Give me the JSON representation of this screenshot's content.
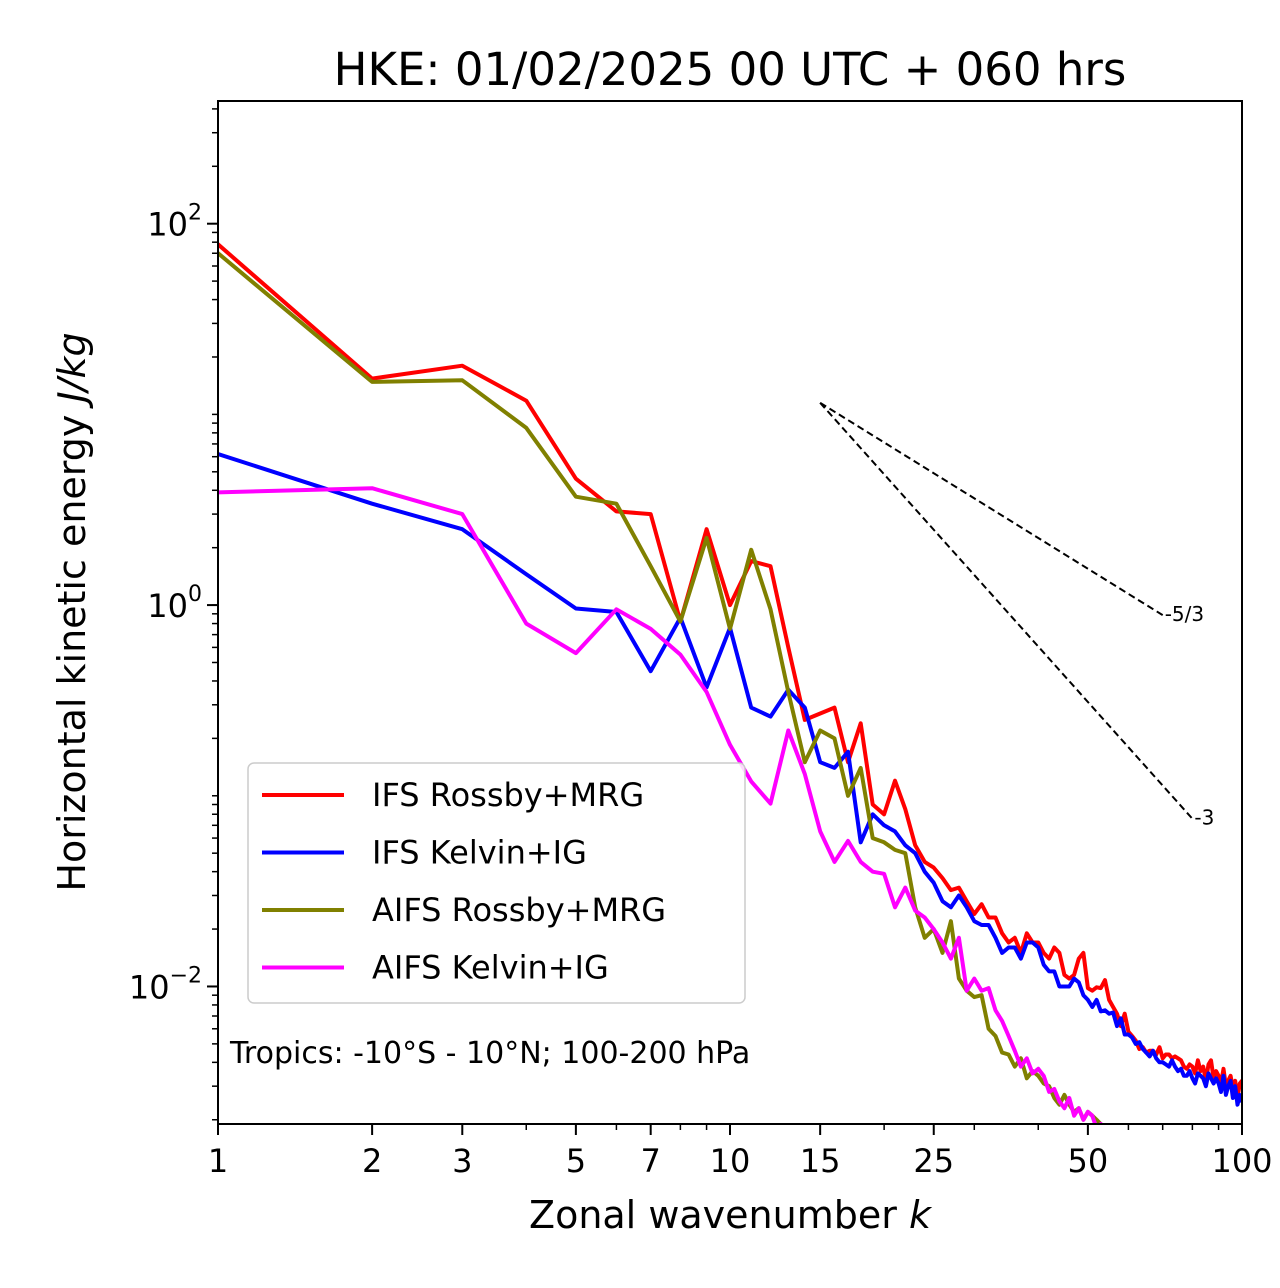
{
  "chart_data": {
    "type": "line",
    "title": "HKE: 01/02/2025 00 UTC + 060 hrs",
    "xlabel": "Zonal wavenumber",
    "xlabel_var": "k",
    "ylabel": "Horizontal kinetic energy",
    "ylabel_unit": "J/kg",
    "xscale": "log",
    "yscale": "log",
    "xlim": [
      1,
      100
    ],
    "ylim": [
      0.0019,
      440
    ],
    "xticks": [
      {
        "value": 1,
        "label": "1"
      },
      {
        "value": 2,
        "label": "2"
      },
      {
        "value": 3,
        "label": "3"
      },
      {
        "value": 5,
        "label": "5"
      },
      {
        "value": 7,
        "label": "7"
      },
      {
        "value": 10,
        "label": "10"
      },
      {
        "value": 15,
        "label": "15"
      },
      {
        "value": 25,
        "label": "25"
      },
      {
        "value": 50,
        "label": "50"
      },
      {
        "value": 100,
        "label": "100"
      }
    ],
    "yticks": [
      {
        "value": 0.01,
        "base": "10",
        "exp": "−2"
      },
      {
        "value": 1,
        "base": "10",
        "exp": "0"
      },
      {
        "value": 100,
        "base": "10",
        "exp": "2"
      }
    ],
    "annotation": "Tropics: -10°S - 10°N; 100-200 hPa",
    "legend_position": "lower-left",
    "grid": false,
    "reference_lines": [
      {
        "label": "-5/3",
        "slope": -1.6667,
        "x": [
          15,
          70
        ],
        "y": [
          11.5,
          0.886
        ]
      },
      {
        "label": "-3",
        "slope": -3,
        "x": [
          15,
          80
        ],
        "y": [
          11.5,
          0.0758
        ]
      }
    ],
    "series": [
      {
        "name": "IFS Rossby+MRG",
        "color": "#ff0000",
        "x": [
          1,
          2,
          3,
          4,
          5,
          6,
          7,
          8,
          9,
          10,
          11,
          12,
          13,
          14,
          15,
          16,
          17,
          18,
          19,
          20,
          21,
          22,
          23,
          24,
          25,
          26,
          27,
          28,
          29,
          30,
          31,
          32,
          33,
          34,
          35,
          36,
          37,
          38,
          39,
          40,
          41,
          42,
          43,
          44,
          45,
          46,
          47,
          48,
          49,
          50,
          51,
          52,
          53,
          54,
          55,
          56,
          57,
          58,
          59,
          60,
          61,
          62,
          63,
          64,
          65,
          66,
          67,
          68,
          69,
          70,
          71,
          72,
          73,
          74,
          75,
          76,
          77,
          78,
          79,
          80,
          81,
          82,
          83,
          84,
          85,
          86,
          87,
          88,
          89,
          90,
          91,
          92,
          93,
          94,
          95,
          96,
          97,
          98,
          99,
          100
        ],
        "y": [
          78,
          15.4,
          18,
          11.8,
          4.6,
          3.1,
          3.0,
          0.82,
          2.5,
          1.0,
          1.7,
          1.6,
          0.6,
          0.25,
          0.27,
          0.29,
          0.15,
          0.24,
          0.09,
          0.08,
          0.12,
          0.085,
          0.055,
          0.045,
          0.042,
          0.037,
          0.032,
          0.033,
          0.028,
          0.024,
          0.027,
          0.023,
          0.023,
          0.019,
          0.017,
          0.018,
          0.015,
          0.019,
          0.017,
          0.017,
          0.015,
          0.014,
          0.016,
          0.015,
          0.0115,
          0.011,
          0.0115,
          0.014,
          0.015,
          0.0098,
          0.0095,
          0.0099,
          0.0098,
          0.0108,
          0.0085,
          0.0078,
          0.0072,
          0.0062,
          0.0072,
          0.0058,
          0.0055,
          0.0052,
          0.0047,
          0.0048,
          0.0045,
          0.0046,
          0.0046,
          0.0044,
          0.0048,
          0.0042,
          0.0044,
          0.0044,
          0.0042,
          0.0043,
          0.0042,
          0.0041,
          0.0038,
          0.0037,
          0.0039,
          0.0038,
          0.0035,
          0.0041,
          0.0036,
          0.0038,
          0.0032,
          0.0039,
          0.0041,
          0.0033,
          0.0036,
          0.0034,
          0.0031,
          0.0037,
          0.003,
          0.0032,
          0.0034,
          0.0029,
          0.0032,
          0.0026,
          0.0031,
          0.0032
        ]
      },
      {
        "name": "IFS Kelvin+IG",
        "color": "#0000ff",
        "x": [
          1,
          2,
          3,
          4,
          5,
          6,
          7,
          8,
          9,
          10,
          11,
          12,
          13,
          14,
          15,
          16,
          17,
          18,
          19,
          20,
          21,
          22,
          23,
          24,
          25,
          26,
          27,
          28,
          29,
          30,
          31,
          32,
          33,
          34,
          35,
          36,
          37,
          38,
          39,
          40,
          41,
          42,
          43,
          44,
          45,
          46,
          47,
          48,
          49,
          50,
          51,
          52,
          53,
          54,
          55,
          56,
          57,
          58,
          59,
          60,
          61,
          62,
          63,
          64,
          65,
          66,
          67,
          68,
          69,
          70,
          71,
          72,
          73,
          74,
          75,
          76,
          77,
          78,
          79,
          80,
          81,
          82,
          83,
          84,
          85,
          86,
          87,
          88,
          89,
          90,
          91,
          92,
          93,
          94,
          95,
          96,
          97,
          98,
          99,
          100
        ],
        "y": [
          6.2,
          3.4,
          2.5,
          1.45,
          0.96,
          0.92,
          0.45,
          0.86,
          0.37,
          0.76,
          0.29,
          0.26,
          0.36,
          0.29,
          0.15,
          0.14,
          0.17,
          0.057,
          0.08,
          0.07,
          0.065,
          0.055,
          0.05,
          0.04,
          0.035,
          0.028,
          0.026,
          0.03,
          0.026,
          0.022,
          0.021,
          0.021,
          0.018,
          0.015,
          0.016,
          0.016,
          0.014,
          0.017,
          0.017,
          0.016,
          0.013,
          0.012,
          0.012,
          0.01,
          0.01,
          0.01,
          0.011,
          0.0105,
          0.009,
          0.0085,
          0.0078,
          0.0085,
          0.0074,
          0.0075,
          0.0072,
          0.0073,
          0.0062,
          0.0068,
          0.0056,
          0.0056,
          0.0054,
          0.005,
          0.0051,
          0.0047,
          0.0045,
          0.0043,
          0.0046,
          0.0042,
          0.004,
          0.004,
          0.0039,
          0.0038,
          0.0041,
          0.0038,
          0.0036,
          0.0037,
          0.0034,
          0.0034,
          0.0036,
          0.0033,
          0.0031,
          0.0035,
          0.0034,
          0.0033,
          0.003,
          0.0035,
          0.0033,
          0.0031,
          0.0033,
          0.0031,
          0.0028,
          0.0034,
          0.0027,
          0.003,
          0.0032,
          0.0026,
          0.003,
          0.0024,
          0.0027,
          0.0025
        ]
      },
      {
        "name": "AIFS Rossby+MRG",
        "color": "#808000",
        "x": [
          1,
          2,
          3,
          4,
          5,
          6,
          7,
          8,
          9,
          10,
          11,
          12,
          13,
          14,
          15,
          16,
          17,
          18,
          19,
          20,
          21,
          22,
          23,
          24,
          25,
          26,
          27,
          28,
          29,
          30,
          31,
          32,
          33,
          34,
          35,
          36,
          37,
          38,
          39,
          40,
          41,
          42,
          43,
          44,
          45,
          46,
          47,
          48,
          49,
          50,
          51,
          52,
          53,
          54
        ],
        "y": [
          70,
          14.8,
          15.1,
          8.5,
          3.7,
          3.4,
          1.6,
          0.82,
          2.25,
          0.75,
          1.95,
          0.95,
          0.35,
          0.15,
          0.22,
          0.2,
          0.1,
          0.14,
          0.06,
          0.057,
          0.052,
          0.05,
          0.026,
          0.018,
          0.02,
          0.015,
          0.022,
          0.011,
          0.0095,
          0.0088,
          0.009,
          0.006,
          0.0055,
          0.0045,
          0.0044,
          0.0038,
          0.0042,
          0.0033,
          0.0036,
          0.0034,
          0.0031,
          0.003,
          0.0026,
          0.0024,
          0.0027,
          0.0024,
          0.0022,
          0.0023,
          0.002,
          0.0022,
          0.0021,
          0.002,
          0.0019,
          0.0017
        ]
      },
      {
        "name": "AIFS Kelvin+IG",
        "color": "#ff00ff",
        "x": [
          1,
          2,
          3,
          4,
          5,
          6,
          7,
          8,
          9,
          10,
          11,
          12,
          13,
          14,
          15,
          16,
          17,
          18,
          19,
          20,
          21,
          22,
          23,
          24,
          25,
          26,
          27,
          28,
          29,
          30,
          31,
          32,
          33,
          34,
          35,
          36,
          37,
          38,
          39,
          40,
          41,
          42,
          43,
          44,
          45,
          46,
          47,
          48,
          49,
          50,
          51,
          52,
          53,
          54
        ],
        "y": [
          3.9,
          4.1,
          3.0,
          0.8,
          0.56,
          0.95,
          0.75,
          0.55,
          0.35,
          0.185,
          0.119,
          0.091,
          0.22,
          0.13,
          0.065,
          0.045,
          0.058,
          0.045,
          0.04,
          0.039,
          0.026,
          0.033,
          0.025,
          0.023,
          0.02,
          0.017,
          0.014,
          0.018,
          0.0095,
          0.011,
          0.0095,
          0.0098,
          0.0075,
          0.0066,
          0.0055,
          0.0046,
          0.0038,
          0.0042,
          0.0035,
          0.0037,
          0.0034,
          0.0028,
          0.0029,
          0.0025,
          0.0023,
          0.0026,
          0.0021,
          0.0023,
          0.002,
          0.0022,
          0.0021,
          0.0018,
          0.0019,
          0.0017
        ]
      }
    ]
  }
}
